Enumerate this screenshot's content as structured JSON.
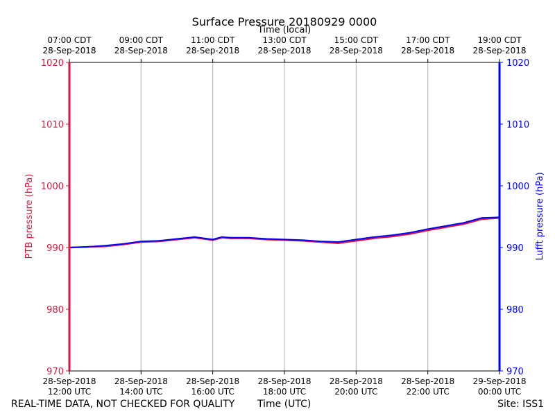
{
  "chart_data": {
    "type": "line",
    "title": "Surface Pressure 20180929 0000",
    "top_axis_label": "Time (local)",
    "xlabel": "Time (UTC)",
    "ylabel_left": "PTB pressure (hPa)",
    "ylabel_right": "Lufft pressure (hPa)",
    "ylim": [
      970,
      1020
    ],
    "yticks": [
      970,
      980,
      990,
      1000,
      1010,
      1020
    ],
    "xlim_hours_utc": [
      12,
      24
    ],
    "bottom_ticks": [
      {
        "hour": 12,
        "date": "28-Sep-2018",
        "time": "12:00 UTC"
      },
      {
        "hour": 14,
        "date": "28-Sep-2018",
        "time": "14:00 UTC"
      },
      {
        "hour": 16,
        "date": "28-Sep-2018",
        "time": "16:00 UTC"
      },
      {
        "hour": 18,
        "date": "28-Sep-2018",
        "time": "18:00 UTC"
      },
      {
        "hour": 20,
        "date": "28-Sep-2018",
        "time": "20:00 UTC"
      },
      {
        "hour": 22,
        "date": "28-Sep-2018",
        "time": "22:00 UTC"
      },
      {
        "hour": 24,
        "date": "29-Sep-2018",
        "time": "00:00 UTC"
      }
    ],
    "top_ticks": [
      {
        "hour": 12,
        "time": "07:00 CDT",
        "date": "28-Sep-2018"
      },
      {
        "hour": 14,
        "time": "09:00 CDT",
        "date": "28-Sep-2018"
      },
      {
        "hour": 16,
        "time": "11:00 CDT",
        "date": "28-Sep-2018"
      },
      {
        "hour": 18,
        "time": "13:00 CDT",
        "date": "28-Sep-2018"
      },
      {
        "hour": 20,
        "time": "15:00 CDT",
        "date": "28-Sep-2018"
      },
      {
        "hour": 22,
        "time": "17:00 CDT",
        "date": "28-Sep-2018"
      },
      {
        "hour": 24,
        "time": "19:00 CDT",
        "date": "28-Sep-2018"
      }
    ],
    "grid": "vertical",
    "series": [
      {
        "name": "PTB pressure",
        "color": "#dc143c",
        "x": [
          12.0,
          12.5,
          13.0,
          13.5,
          14.0,
          14.5,
          15.0,
          15.5,
          16.0,
          16.25,
          16.5,
          17.0,
          17.5,
          18.0,
          18.5,
          19.0,
          19.5,
          20.0,
          20.5,
          21.0,
          21.5,
          22.0,
          22.5,
          23.0,
          23.5,
          24.0
        ],
        "values": [
          990.0,
          990.1,
          990.2,
          990.5,
          990.9,
          991.0,
          991.3,
          991.6,
          991.2,
          991.6,
          991.5,
          991.5,
          991.3,
          991.2,
          991.1,
          990.9,
          990.7,
          991.1,
          991.5,
          991.8,
          992.2,
          992.8,
          993.3,
          993.8,
          994.6,
          994.8
        ]
      },
      {
        "name": "Lufft pressure",
        "color": "#0000ff",
        "x": [
          12.0,
          12.5,
          13.0,
          13.5,
          14.0,
          14.5,
          15.0,
          15.5,
          16.0,
          16.25,
          16.5,
          17.0,
          17.5,
          18.0,
          18.5,
          19.0,
          19.5,
          20.0,
          20.5,
          21.0,
          21.5,
          22.0,
          22.5,
          23.0,
          23.5,
          24.0
        ],
        "values": [
          990.0,
          990.1,
          990.3,
          990.6,
          991.0,
          991.1,
          991.4,
          991.7,
          991.3,
          991.7,
          991.6,
          991.6,
          991.4,
          991.3,
          991.2,
          991.0,
          990.9,
          991.3,
          991.7,
          992.0,
          992.4,
          993.0,
          993.5,
          994.0,
          994.8,
          994.9
        ]
      }
    ],
    "left_axis_color": "#dc143c",
    "right_axis_color": "#0000ff"
  },
  "footer": {
    "left": "REAL-TIME DATA, NOT CHECKED FOR QUALITY",
    "center": "Time (UTC)",
    "right": "Site: ISS1"
  }
}
